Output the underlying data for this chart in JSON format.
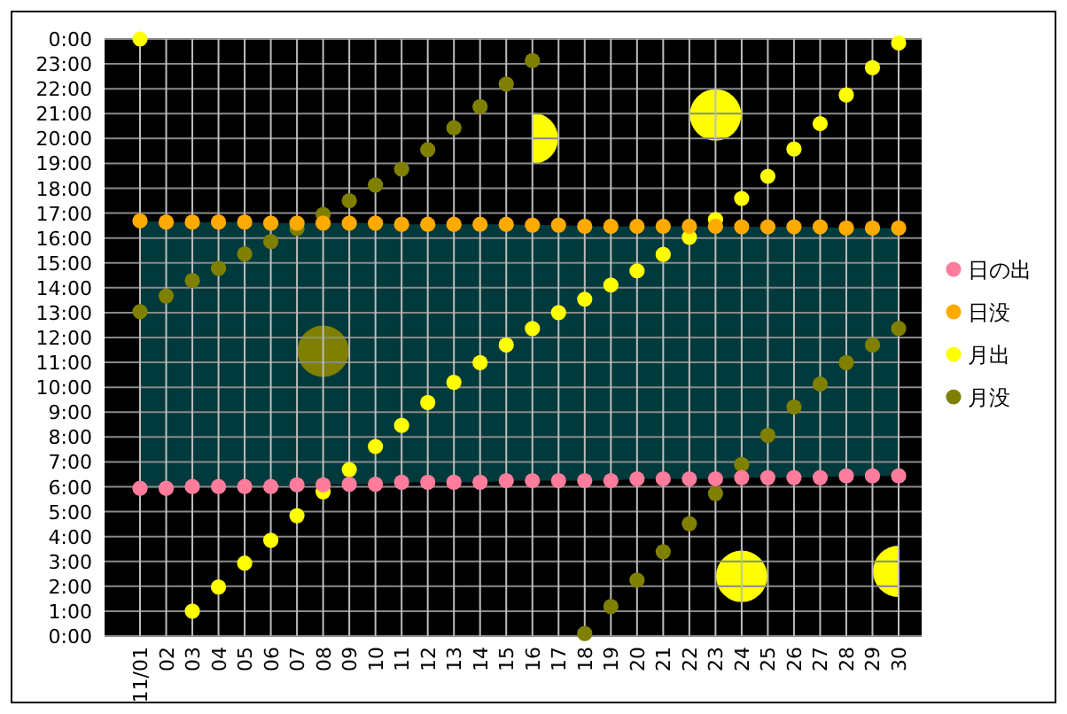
{
  "chart_data": {
    "type": "scatter",
    "categories": [
      "11/01",
      "02",
      "03",
      "04",
      "05",
      "06",
      "07",
      "08",
      "09",
      "10",
      "11",
      "12",
      "13",
      "14",
      "15",
      "16",
      "17",
      "18",
      "19",
      "20",
      "21",
      "22",
      "23",
      "24",
      "25",
      "26",
      "27",
      "28",
      "29",
      "30"
    ],
    "ylim": [
      0,
      24
    ],
    "yticks": [
      {
        "value": 0,
        "label": "0:00"
      },
      {
        "value": 1,
        "label": "1:00"
      },
      {
        "value": 2,
        "label": "2:00"
      },
      {
        "value": 3,
        "label": "3:00"
      },
      {
        "value": 4,
        "label": "4:00"
      },
      {
        "value": 5,
        "label": "5:00"
      },
      {
        "value": 6,
        "label": "6:00"
      },
      {
        "value": 7,
        "label": "7:00"
      },
      {
        "value": 8,
        "label": "8:00"
      },
      {
        "value": 9,
        "label": "9:00"
      },
      {
        "value": 10,
        "label": "10:00"
      },
      {
        "value": 11,
        "label": "11:00"
      },
      {
        "value": 12,
        "label": "12:00"
      },
      {
        "value": 13,
        "label": "13:00"
      },
      {
        "value": 14,
        "label": "14:00"
      },
      {
        "value": 15,
        "label": "15:00"
      },
      {
        "value": 16,
        "label": "16:00"
      },
      {
        "value": 17,
        "label": "17:00"
      },
      {
        "value": 18,
        "label": "18:00"
      },
      {
        "value": 19,
        "label": "19:00"
      },
      {
        "value": 20,
        "label": "20:00"
      },
      {
        "value": 21,
        "label": "21:00"
      },
      {
        "value": 22,
        "label": "22:00"
      },
      {
        "value": 23,
        "label": "23:00"
      },
      {
        "value": 24,
        "label": "0:00"
      }
    ],
    "grid": true,
    "legend": "right",
    "marker": "circle",
    "series": [
      {
        "name": "日の出",
        "color": "#ff7c9c",
        "values": [
          5.94,
          5.94,
          6.01,
          6.01,
          6.01,
          6.01,
          6.08,
          6.08,
          6.1,
          6.1,
          6.18,
          6.18,
          6.18,
          6.18,
          6.25,
          6.25,
          6.25,
          6.25,
          6.25,
          6.32,
          6.32,
          6.32,
          6.32,
          6.37,
          6.37,
          6.37,
          6.37,
          6.44,
          6.44,
          6.44
        ]
      },
      {
        "name": "日没",
        "color": "#ffaa00",
        "values": [
          16.69,
          16.64,
          16.64,
          16.64,
          16.64,
          16.6,
          16.6,
          16.6,
          16.6,
          16.6,
          16.55,
          16.55,
          16.55,
          16.55,
          16.55,
          16.52,
          16.52,
          16.47,
          16.47,
          16.47,
          16.47,
          16.47,
          16.47,
          16.45,
          16.45,
          16.45,
          16.45,
          16.4,
          16.4,
          16.4
        ],
        "lower": [
          5.94,
          5.94,
          6.01,
          6.01,
          6.01,
          6.01,
          6.08,
          6.08,
          6.1,
          6.1,
          6.18,
          6.18,
          6.18,
          6.18,
          6.25,
          6.25,
          6.25,
          6.25,
          6.25,
          6.32,
          6.32,
          6.32,
          6.32,
          6.37,
          6.37,
          6.37,
          6.37,
          6.44,
          6.44,
          6.44
        ],
        "upper": [
          16.69,
          16.64,
          16.64,
          16.64,
          16.64,
          16.6,
          16.6,
          16.6,
          16.6,
          16.6,
          16.55,
          16.55,
          16.55,
          16.55,
          16.55,
          16.52,
          16.52,
          16.47,
          16.47,
          16.47,
          16.47,
          16.47,
          16.47,
          16.45,
          16.45,
          16.45,
          16.45,
          16.4,
          16.4,
          16.4
        ]
      },
      {
        "name": "月出",
        "color": "#ffff00",
        "values": [
          24,
          null,
          1.0,
          1.97,
          2.93,
          3.85,
          4.84,
          5.8,
          6.69,
          7.62,
          8.47,
          9.39,
          10.2,
          10.99,
          11.7,
          12.36,
          13.0,
          13.54,
          14.11,
          14.68,
          15.34,
          16.03,
          16.74,
          17.59,
          18.48,
          19.58,
          20.6,
          21.75,
          22.85,
          23.84
        ]
      },
      {
        "name": "月没",
        "color": "#808000",
        "values": [
          13.04,
          13.67,
          14.29,
          14.78,
          15.36,
          15.86,
          16.38,
          16.95,
          17.5,
          18.13,
          18.77,
          19.55,
          20.43,
          21.28,
          22.19,
          23.13,
          null,
          0.1,
          1.19,
          2.25,
          3.39,
          4.52,
          5.73,
          6.9,
          8.07,
          9.21,
          10.13,
          10.99,
          11.7,
          12.36
        ]
      }
    ]
  }
}
